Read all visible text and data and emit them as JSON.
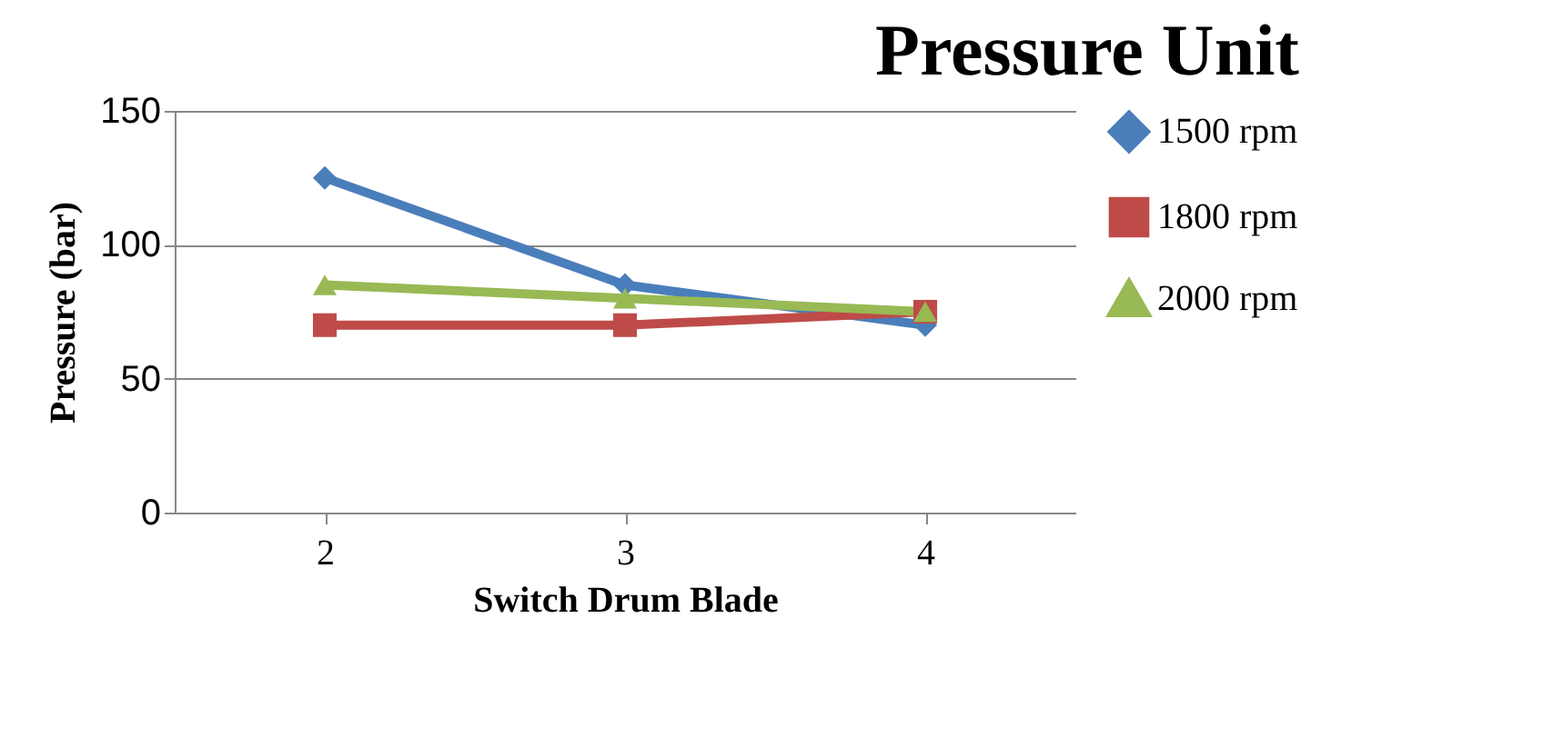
{
  "chart_data": {
    "type": "line",
    "title": "Pressure Unit",
    "xlabel": "Switch Drum Blade",
    "ylabel": "Pressure (bar)",
    "categories": [
      "2",
      "3",
      "4"
    ],
    "series": [
      {
        "name": "1500 rpm",
        "color": "#4a7ebb",
        "values": [
          125,
          85,
          70
        ],
        "marker": "diamond"
      },
      {
        "name": "1800 rpm",
        "color": "#be4b48",
        "values": [
          70,
          70,
          75
        ],
        "marker": "square"
      },
      {
        "name": "2000 rpm",
        "color": "#98b954",
        "values": [
          85,
          80,
          75
        ],
        "marker": "triangle"
      }
    ],
    "ylim": [
      0,
      150
    ],
    "yticks": [
      0,
      50,
      100,
      150
    ],
    "grid": "y",
    "legend": "right",
    "line_style": "solid"
  }
}
